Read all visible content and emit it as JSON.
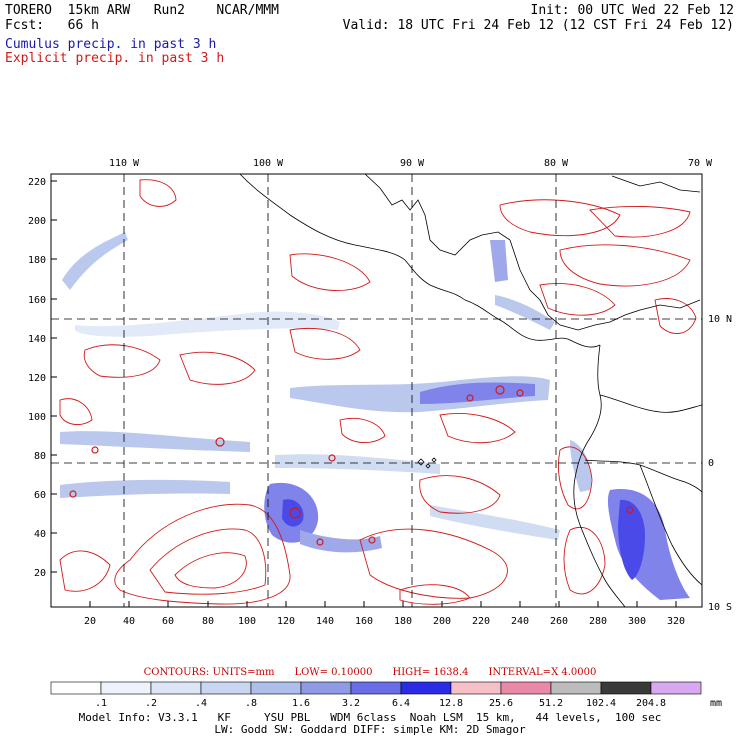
{
  "header": {
    "model": "TORERO  15km ARW   Run2    NCAR/MMM",
    "forecast": "Fcst:   66 h",
    "init": "Init: 00 UTC Wed 22 Feb 12",
    "valid": "Valid: 18 UTC Fri 24 Feb 12 (12 CST Fri 24 Feb 12)"
  },
  "legend_labels": {
    "cumulus": "Cumulus precip. in past 3 h",
    "explicit": "Explicit precip. in past 3 h"
  },
  "colors": {
    "cumulus": "#1a1aa6",
    "explicit": "#d11a1a",
    "grid": "#000000"
  },
  "lon_labels": [
    "110 W",
    "100 W",
    "90 W",
    "80 W",
    "70 W"
  ],
  "lat_labels": [
    "10 N",
    "0",
    "10 S"
  ],
  "y_ticks": [
    "220",
    "200",
    "180",
    "160",
    "140",
    "120",
    "100",
    "80",
    "60",
    "40",
    "20"
  ],
  "x_ticks": [
    "20",
    "40",
    "60",
    "80",
    "100",
    "120",
    "140",
    "160",
    "180",
    "200",
    "220",
    "240",
    "260",
    "280",
    "300",
    "320"
  ],
  "contours": {
    "units": "CONTOURS:  UNITS=mm",
    "low": "LOW= 0.10000",
    "high": "HIGH=  1638.4",
    "interval": "INTERVAL=X  4.0000"
  },
  "colorbar": {
    "values": [
      ".1",
      ".2",
      ".4",
      ".8",
      "1.6",
      "3.2",
      "6.4",
      "12.8",
      "25.6",
      "51.2",
      "102.4",
      "204.8"
    ],
    "unit": "mm",
    "colors": [
      "#ffffff",
      "#eef2fb",
      "#dde6f7",
      "#c8d6f0",
      "#aebfec",
      "#8f9ae6",
      "#6a6ee6",
      "#2b2be6",
      "#f5c0c8",
      "#e98aa8",
      "#bcbcbc",
      "#3a3a3a",
      "#d8a8f0"
    ]
  },
  "model_info": {
    "line1": "Model Info: V3.3.1   KF     YSU PBL   WDM 6class  Noah LSM  15 km,   44 levels,  100 sec",
    "line2": "LW: Godd SW: Goddard DIFF: simple KM: 2D Smagor"
  }
}
